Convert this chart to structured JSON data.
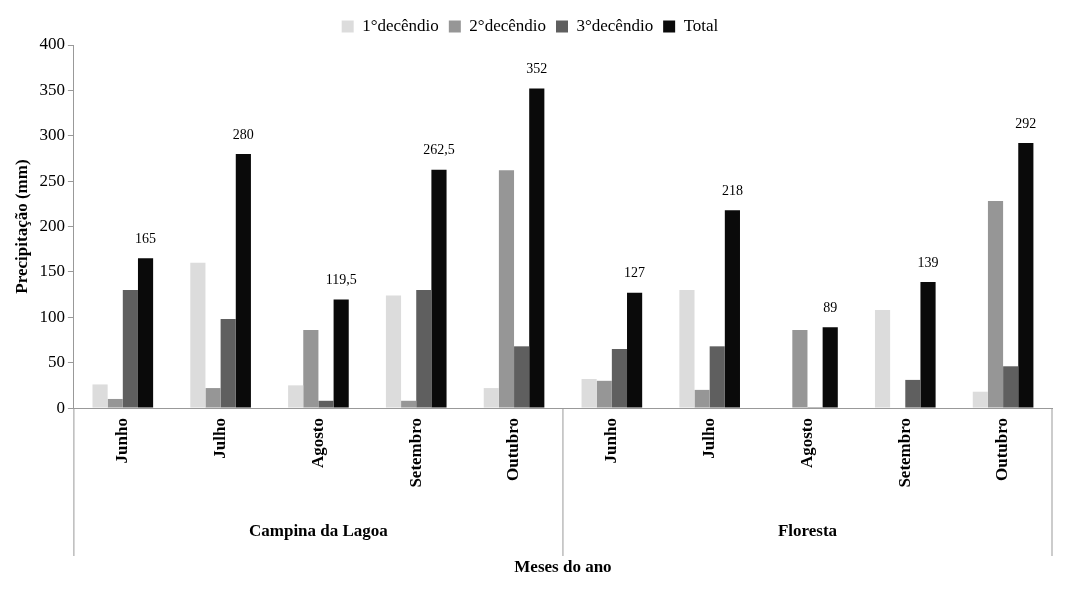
{
  "chart_data": {
    "type": "bar",
    "xlabel": "Meses do ano",
    "ylabel": "Precipitação (mm)",
    "categories": [
      "Junho",
      "Julho",
      "Agosto",
      "Setembro",
      "Outubro",
      "Junho",
      "Julho",
      "Agosto",
      "Setembro",
      "Outubro"
    ],
    "series": [
      {
        "name": "1°decêndio",
        "color": "#dcdcdc",
        "values": [
          26,
          160,
          25,
          124,
          22,
          32,
          130,
          null,
          108,
          18
        ]
      },
      {
        "name": "2°decêndio",
        "color": "#969696",
        "values": [
          10,
          22,
          86,
          8,
          262,
          30,
          20,
          86,
          0,
          228
        ]
      },
      {
        "name": "3°decêndio",
        "color": "#5f5f5f",
        "values": [
          130,
          98,
          8,
          130,
          68,
          65,
          68,
          1,
          31,
          46
        ]
      },
      {
        "name": "Total",
        "color": "#0a0a0a",
        "values": [
          165,
          280,
          119.5,
          262.5,
          352,
          127,
          218,
          89,
          139,
          292
        ],
        "value_labels": [
          "165",
          "280",
          "119,5",
          "262,5",
          "352",
          "127",
          "218",
          "89",
          "139",
          "292"
        ]
      }
    ],
    "ylim": [
      0,
      400
    ],
    "yticks": [
      0,
      50,
      100,
      150,
      200,
      250,
      300,
      350,
      400
    ],
    "grid": false,
    "legend": "top",
    "annotations": [
      "Campina da Lagoa",
      "Floresta"
    ]
  }
}
